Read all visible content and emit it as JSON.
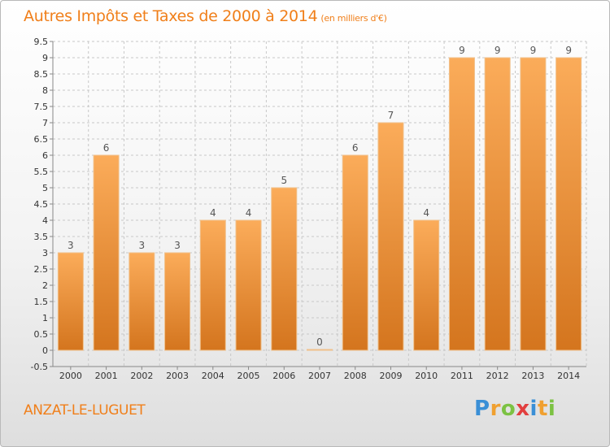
{
  "title": "Autres Impôts et Taxes de 2000 à 2014",
  "subtitle": "(en milliers d'€)",
  "commune": "ANZAT-LE-LUGUET",
  "logo": {
    "letters": [
      "P",
      "r",
      "o",
      "x",
      "i",
      "t",
      "i"
    ],
    "colors": [
      "#3a8fd6",
      "#f0a030",
      "#7cc243",
      "#e23f3f",
      "#3a8fd6",
      "#f0a030",
      "#7cc243"
    ]
  },
  "colors": {
    "bar_light": "#fbac5a",
    "bar_dark": "#d4751e",
    "bar_edge": "#f0c08a",
    "title": "#f07f1a",
    "grid": "#c8c8c8"
  },
  "chart_data": {
    "type": "bar",
    "categories": [
      "2000",
      "2001",
      "2002",
      "2003",
      "2004",
      "2005",
      "2006",
      "2007",
      "2008",
      "2009",
      "2010",
      "2011",
      "2012",
      "2013",
      "2014"
    ],
    "values": [
      3,
      6,
      3,
      3,
      4,
      4,
      5,
      0,
      6,
      7,
      4,
      9,
      9,
      9,
      9
    ],
    "ylim": [
      -0.5,
      9.5
    ],
    "yticks": [
      "-0.5",
      "0",
      "0.5",
      "1",
      "1.5",
      "2",
      "2.5",
      "3",
      "3.5",
      "4",
      "4.5",
      "5",
      "5.5",
      "6",
      "6.5",
      "7",
      "7.5",
      "8",
      "8.5",
      "9",
      "9.5"
    ],
    "grid": true,
    "xlabel": "",
    "ylabel": ""
  }
}
